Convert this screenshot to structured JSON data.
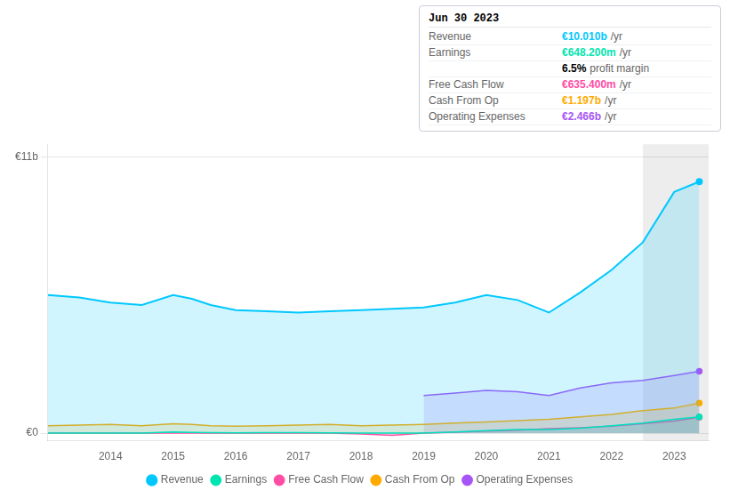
{
  "chart_data": {
    "type": "line",
    "x": [
      2013.0,
      2013.5,
      2014.0,
      2014.5,
      2015.0,
      2015.3,
      2015.6,
      2016.0,
      2016.5,
      2017.0,
      2017.5,
      2018.0,
      2018.5,
      2019.0,
      2019.5,
      2020.0,
      2020.5,
      2021.0,
      2021.5,
      2022.0,
      2022.5,
      2023.0,
      2023.4
    ],
    "series": [
      {
        "name": "Revenue",
        "color": "#00c8ff",
        "values": [
          5.5,
          5.4,
          5.2,
          5.1,
          5.5,
          5.35,
          5.1,
          4.9,
          4.85,
          4.8,
          4.85,
          4.9,
          4.95,
          5.0,
          5.2,
          5.5,
          5.3,
          4.8,
          5.6,
          6.5,
          7.6,
          9.6,
          10.01
        ]
      },
      {
        "name": "Earnings",
        "color": "#00e5b0",
        "values": [
          0.0,
          0.0,
          0.0,
          0.0,
          0.05,
          0.03,
          0.02,
          0.01,
          0.02,
          0.02,
          0.01,
          0.0,
          0.0,
          0.0,
          0.05,
          0.1,
          0.15,
          0.15,
          0.2,
          0.3,
          0.4,
          0.55,
          0.648
        ]
      },
      {
        "name": "Free Cash Flow",
        "color": "#ff4da6",
        "values": [
          0.0,
          0.0,
          0.0,
          0.0,
          0.0,
          0.0,
          0.0,
          0.0,
          0.0,
          0.0,
          0.0,
          -0.03,
          -0.08,
          0.0,
          0.04,
          0.08,
          0.12,
          0.18,
          0.22,
          0.28,
          0.38,
          0.48,
          0.635
        ]
      },
      {
        "name": "Cash From Op",
        "color": "#ffaa00",
        "values": [
          0.3,
          0.32,
          0.35,
          0.3,
          0.38,
          0.35,
          0.3,
          0.28,
          0.3,
          0.32,
          0.35,
          0.3,
          0.32,
          0.35,
          0.4,
          0.45,
          0.5,
          0.55,
          0.65,
          0.75,
          0.9,
          1.0,
          1.197
        ]
      },
      {
        "name": "Operating Expenses",
        "color": "#a855f7",
        "values": [
          null,
          null,
          null,
          null,
          null,
          null,
          null,
          null,
          null,
          null,
          null,
          null,
          null,
          1.5,
          1.6,
          1.7,
          1.65,
          1.5,
          1.8,
          2.0,
          2.1,
          2.3,
          2.466
        ]
      }
    ],
    "xlim": [
      2013.0,
      2023.55
    ],
    "ylim": [
      -0.3,
      11.5
    ],
    "xticks": [
      2014,
      2015,
      2016,
      2017,
      2018,
      2019,
      2020,
      2021,
      2022,
      2023
    ],
    "yticks": [
      {
        "value": 0,
        "label": "€0"
      },
      {
        "value": 11,
        "label": "€11b"
      }
    ],
    "grid": "y",
    "legend": "bottom",
    "shaded_x": [
      2022.5,
      2023.55
    ],
    "annotation": {
      "title": "Jun 30 2023",
      "rows": [
        {
          "label": "Revenue",
          "value": "€10.010b",
          "suffix": "/yr",
          "color": "#00c8ff"
        },
        {
          "label": "Earnings",
          "value": "€648.200m",
          "suffix": "/yr",
          "color": "#00e5b0"
        },
        {
          "value": "6.5%",
          "suffix": "profit margin",
          "color": "#000000"
        },
        {
          "label": "Free Cash Flow",
          "value": "€635.400m",
          "suffix": "/yr",
          "color": "#ff4da6"
        },
        {
          "label": "Cash From Op",
          "value": "€1.197b",
          "suffix": "/yr",
          "color": "#ffaa00"
        },
        {
          "label": "Operating Expenses",
          "value": "€2.466b",
          "suffix": "/yr",
          "color": "#a855f7"
        }
      ]
    }
  }
}
